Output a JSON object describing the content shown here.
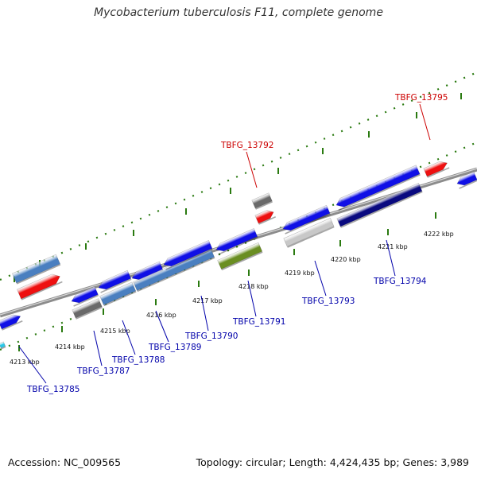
{
  "header": {
    "title": "Mycobacterium tuberculosis F11, complete genome"
  },
  "footer": {
    "accession": "Accession: NC_009565",
    "stats": "Topology: circular; Length: 4,424,435 bp; Genes: 3,989"
  },
  "colors": {
    "label_blue": "#0000aa",
    "label_red": "#cc0000",
    "backbone": "#8c8c8c",
    "tick_green": "#2a7a10",
    "gene_blue": "#1010e6",
    "gene_steelblue": "#4a7fc0",
    "gene_red": "#ee1010",
    "gene_grey": "#6a6a6a",
    "gene_lightgrey": "#c8c8c8",
    "gene_navy": "#0a0a80",
    "gene_olive": "#6a8e22",
    "gene_cyan": "#2ac8e8"
  },
  "scale_labels": [
    "4213 kbp",
    "4214 kbp",
    "4215 kbp",
    "4216 kbp",
    "4217 kbp",
    "4218 kbp",
    "4219 kbp",
    "4220 kbp",
    "4221 kbp",
    "4222 kbp"
  ],
  "gene_labels": {
    "tbfg_13785": "TBFG_13785",
    "tbfg_13787": "TBFG_13787",
    "tbfg_13788": "TBFG_13788",
    "tbfg_13789": "TBFG_13789",
    "tbfg_13790": "TBFG_13790",
    "tbfg_13791": "TBFG_13791",
    "tbfg_13792": "TBFG_13792",
    "tbfg_13793": "TBFG_13793",
    "tbfg_13794": "TBFG_13794",
    "tbfg_13795": "TBFG_13795"
  }
}
